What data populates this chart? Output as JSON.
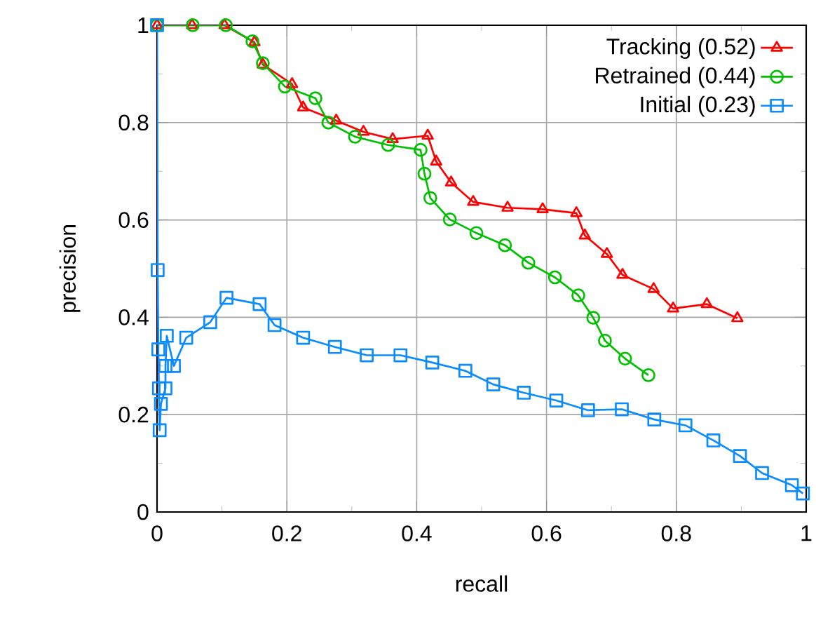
{
  "chart_data": {
    "type": "line",
    "xlabel": "recall",
    "ylabel": "precision",
    "xlim": [
      0,
      1
    ],
    "ylim": [
      0,
      1
    ],
    "xticks": [
      0,
      0.2,
      0.4,
      0.6,
      0.8,
      1
    ],
    "yticks": [
      0,
      0.2,
      0.4,
      0.6,
      0.8,
      1
    ],
    "grid": true,
    "legend": "top right",
    "line_style": "solid",
    "series": [
      {
        "name": "Tracking (0.52)",
        "color": "#ff0000",
        "marker": "triangle",
        "x": [
          0,
          0.054,
          0.104,
          0.15,
          0.163,
          0.208,
          0.225,
          0.276,
          0.318,
          0.363,
          0.417,
          0.43,
          0.453,
          0.487,
          0.54,
          0.594,
          0.646,
          0.659,
          0.693,
          0.717,
          0.765,
          0.795,
          0.847,
          0.894
        ],
        "values": [
          1,
          1,
          1,
          0.965,
          0.919,
          0.879,
          0.831,
          0.804,
          0.781,
          0.766,
          0.773,
          0.72,
          0.677,
          0.637,
          0.625,
          0.622,
          0.614,
          0.568,
          0.53,
          0.487,
          0.458,
          0.418,
          0.427,
          0.398
        ]
      },
      {
        "name": "Retrained (0.44)",
        "color": "#00c000",
        "marker": "circle",
        "x": [
          0,
          0.055,
          0.106,
          0.147,
          0.163,
          0.197,
          0.244,
          0.264,
          0.305,
          0.356,
          0.406,
          0.412,
          0.421,
          0.451,
          0.492,
          0.536,
          0.572,
          0.613,
          0.649,
          0.672,
          0.69,
          0.721,
          0.757
        ],
        "values": [
          1,
          1,
          1,
          0.967,
          0.922,
          0.874,
          0.85,
          0.8,
          0.771,
          0.754,
          0.744,
          0.695,
          0.645,
          0.601,
          0.573,
          0.548,
          0.512,
          0.482,
          0.445,
          0.399,
          0.352,
          0.315,
          0.281
        ]
      },
      {
        "name": "Initial (0.23)",
        "color": "#0a8cff",
        "marker": "square",
        "x": [
          0,
          0.001,
          0.002,
          0.003,
          0.004,
          0.006,
          0.013,
          0.013,
          0.015,
          0.026,
          0.045,
          0.082,
          0.107,
          0.158,
          0.181,
          0.225,
          0.274,
          0.323,
          0.375,
          0.424,
          0.475,
          0.518,
          0.565,
          0.615,
          0.664,
          0.716,
          0.766,
          0.814,
          0.857,
          0.898,
          0.932,
          0.978,
          0.995
        ],
        "values": [
          1,
          0.497,
          0.334,
          0.254,
          0.168,
          0.222,
          0.254,
          0.3,
          0.362,
          0.3,
          0.358,
          0.39,
          0.44,
          0.427,
          0.384,
          0.358,
          0.339,
          0.322,
          0.322,
          0.307,
          0.29,
          0.262,
          0.245,
          0.229,
          0.209,
          0.211,
          0.19,
          0.178,
          0.147,
          0.115,
          0.08,
          0.055,
          0.038
        ]
      }
    ]
  }
}
